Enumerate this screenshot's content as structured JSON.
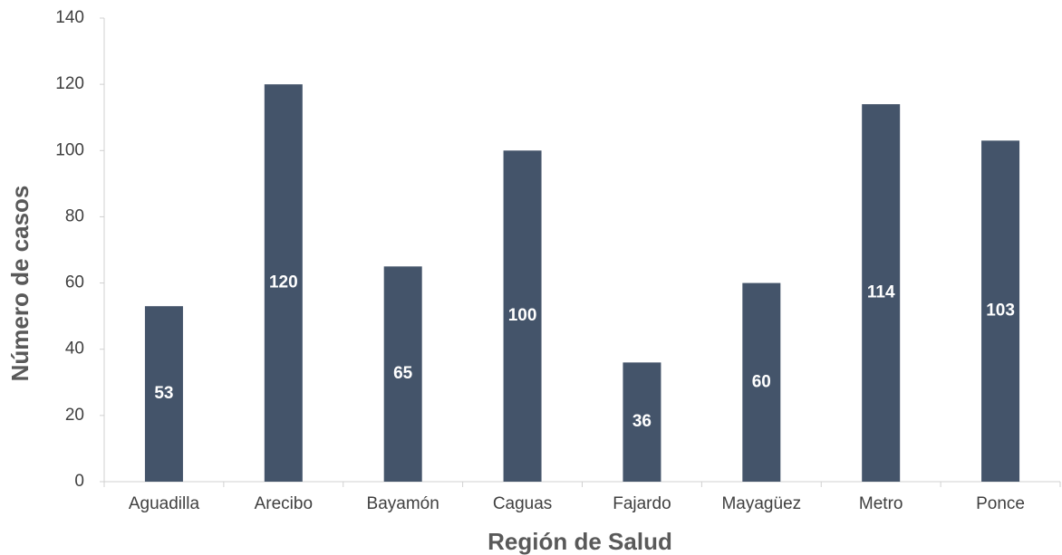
{
  "chart_data": {
    "type": "bar",
    "x_label": "Región de Salud",
    "y_label": "Número de casos",
    "categories": [
      "Aguadilla",
      "Arecibo",
      "Bayamón",
      "Caguas",
      "Fajardo",
      "Mayagüez",
      "Metro",
      "Ponce"
    ],
    "values": [
      53,
      120,
      65,
      100,
      36,
      60,
      114,
      103
    ],
    "color": "#44546a",
    "ylim": [
      0,
      140
    ],
    "yticks": [
      0,
      20,
      40,
      60,
      80,
      100,
      120,
      140
    ],
    "grid": false
  }
}
